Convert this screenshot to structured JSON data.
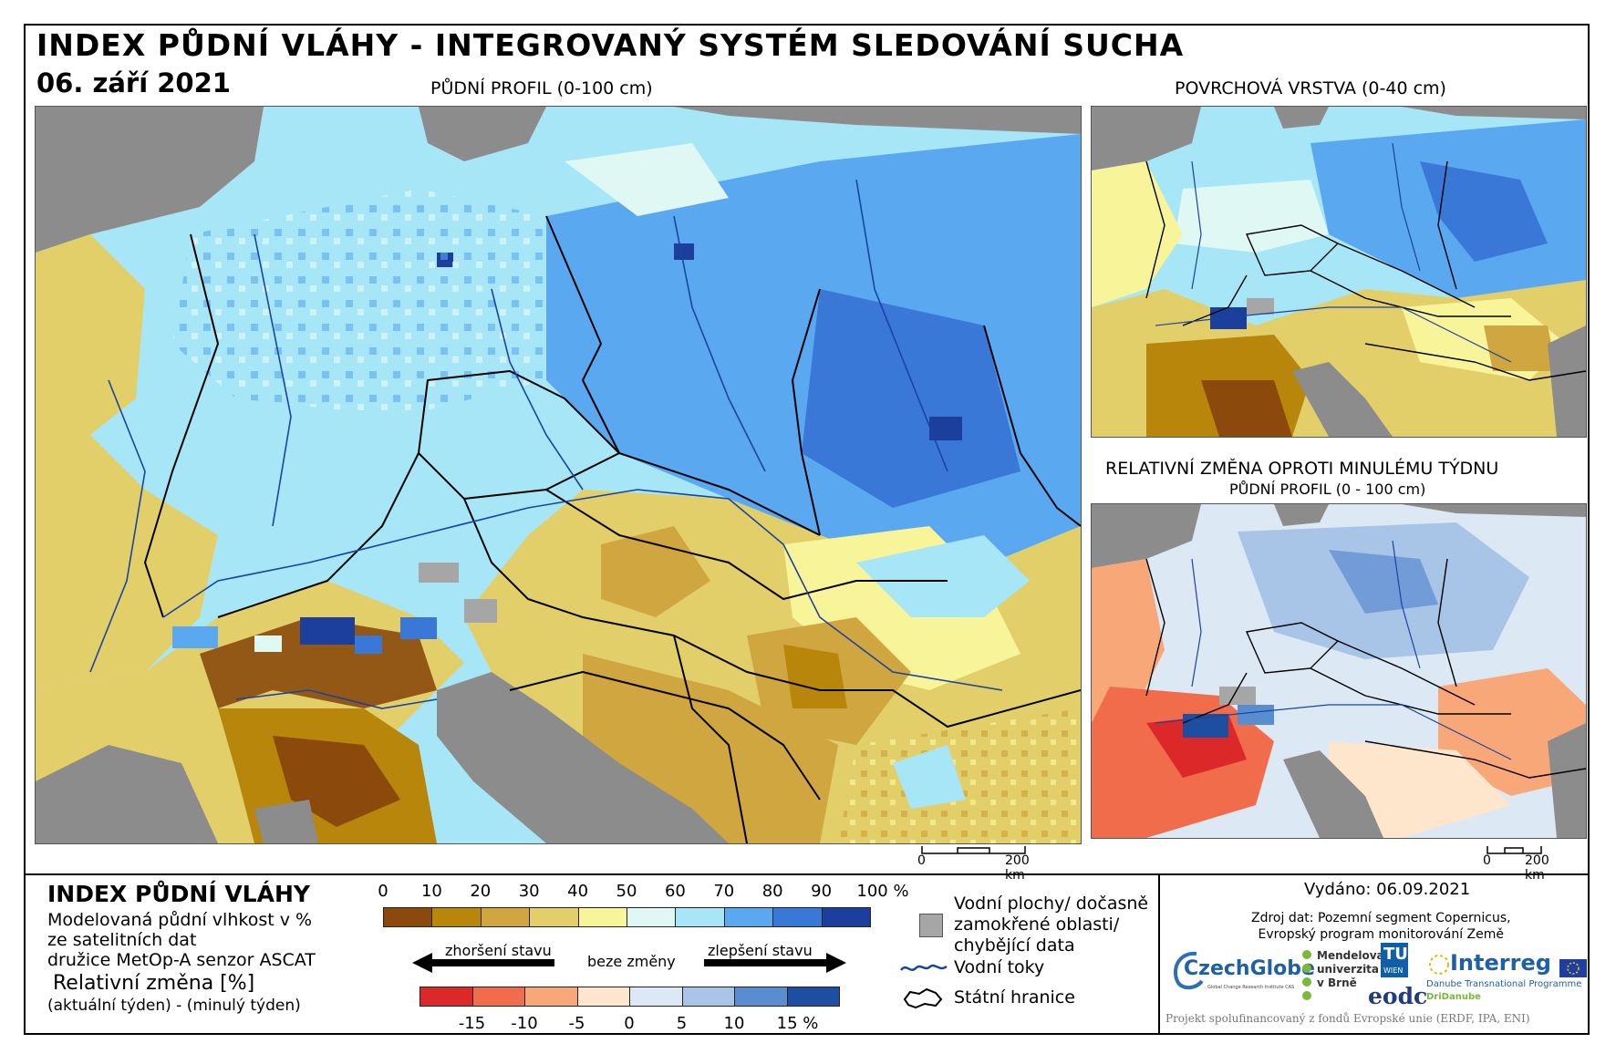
{
  "header": {
    "title": "INDEX PŮDNÍ VLÁHY - INTEGROVANÝ SYSTÉM SLEDOVÁNÍ SUCHA",
    "date": "06. září 2021"
  },
  "maps": {
    "main_label": "PŮDNÍ PROFIL (0-100 cm)",
    "surface_label": "POVRCHOVÁ VRSTVA (0-40 cm)",
    "change_label": "RELATIVNÍ ZMĚNA OPROTI MINULÉMU TÝDNU",
    "change_sublabel": "PŮDNÍ PROFIL (0 - 100 cm)",
    "scale_zero": "0",
    "scale_main": "200 km",
    "scale_small": "200 km"
  },
  "legend": {
    "title": "INDEX PŮDNÍ VLÁHY",
    "desc_line1": "Modelovaná půdní vlhkost v %",
    "desc_line2": "ze satelitních dat",
    "desc_line3": "družice MetOp-A senzor ASCAT",
    "rel_title": "Relativní změna [%]",
    "rel_sub": "(aktuální týden) - (minulý týden)",
    "index_ticks": [
      "0",
      "10",
      "20",
      "30",
      "40",
      "50",
      "60",
      "70",
      "80",
      "90",
      "100 %"
    ],
    "index_colors": [
      "#8b4a0c",
      "#b8860b",
      "#cfa640",
      "#e2cf6a",
      "#f8f49a",
      "#e0f8f4",
      "#a6e6f6",
      "#5aa8f0",
      "#3a78d8",
      "#1c3e9c"
    ],
    "worse_label": "zhoršení stavu",
    "nochange_label": "beze změny",
    "better_label": "zlepšení stavu",
    "change_ticks": [
      "-15",
      "-10",
      "-5",
      "0",
      "5",
      "10",
      "15 %"
    ],
    "change_colors": [
      "#dc2828",
      "#f06c4a",
      "#f8a878",
      "#fde6cc",
      "#dce8f4",
      "#a8c4e6",
      "#5a8cd0",
      "#1e4ea0"
    ],
    "key_water_line1": "Vodní plochy/ dočasně",
    "key_water_line2": "zamokřené oblasti/",
    "key_water_line3": "chybějící data",
    "key_rivers": "Vodní toky",
    "key_borders": "Státní hranice",
    "missing_color": "#a6a6a6",
    "river_color": "#1a44a0"
  },
  "info": {
    "issued": "Vydáno: 06.09.2021",
    "source_line1": "Zdroj dat: Pozemní segment Copernicus,",
    "source_line2": "Evropský program monitorování Země",
    "logo_czechglobe": "CzechGlobe",
    "logo_czechglobe_sub": "Global Change Research Institute CAS",
    "logo_mendel_1": "Mendelova",
    "logo_mendel_2": "univerzita",
    "logo_mendel_3": "v Brně",
    "logo_tu": "TU",
    "logo_tu_sub": "WIEN",
    "logo_eodc": "eodc",
    "logo_interreg": "Interreg",
    "logo_interreg_sub": "Danube Transnational Programme",
    "logo_dridanube": "DriDanube",
    "footer": "Projekt spolufinancovaný z fondů Evropské unie (ERDF, IPA, ENI)"
  }
}
